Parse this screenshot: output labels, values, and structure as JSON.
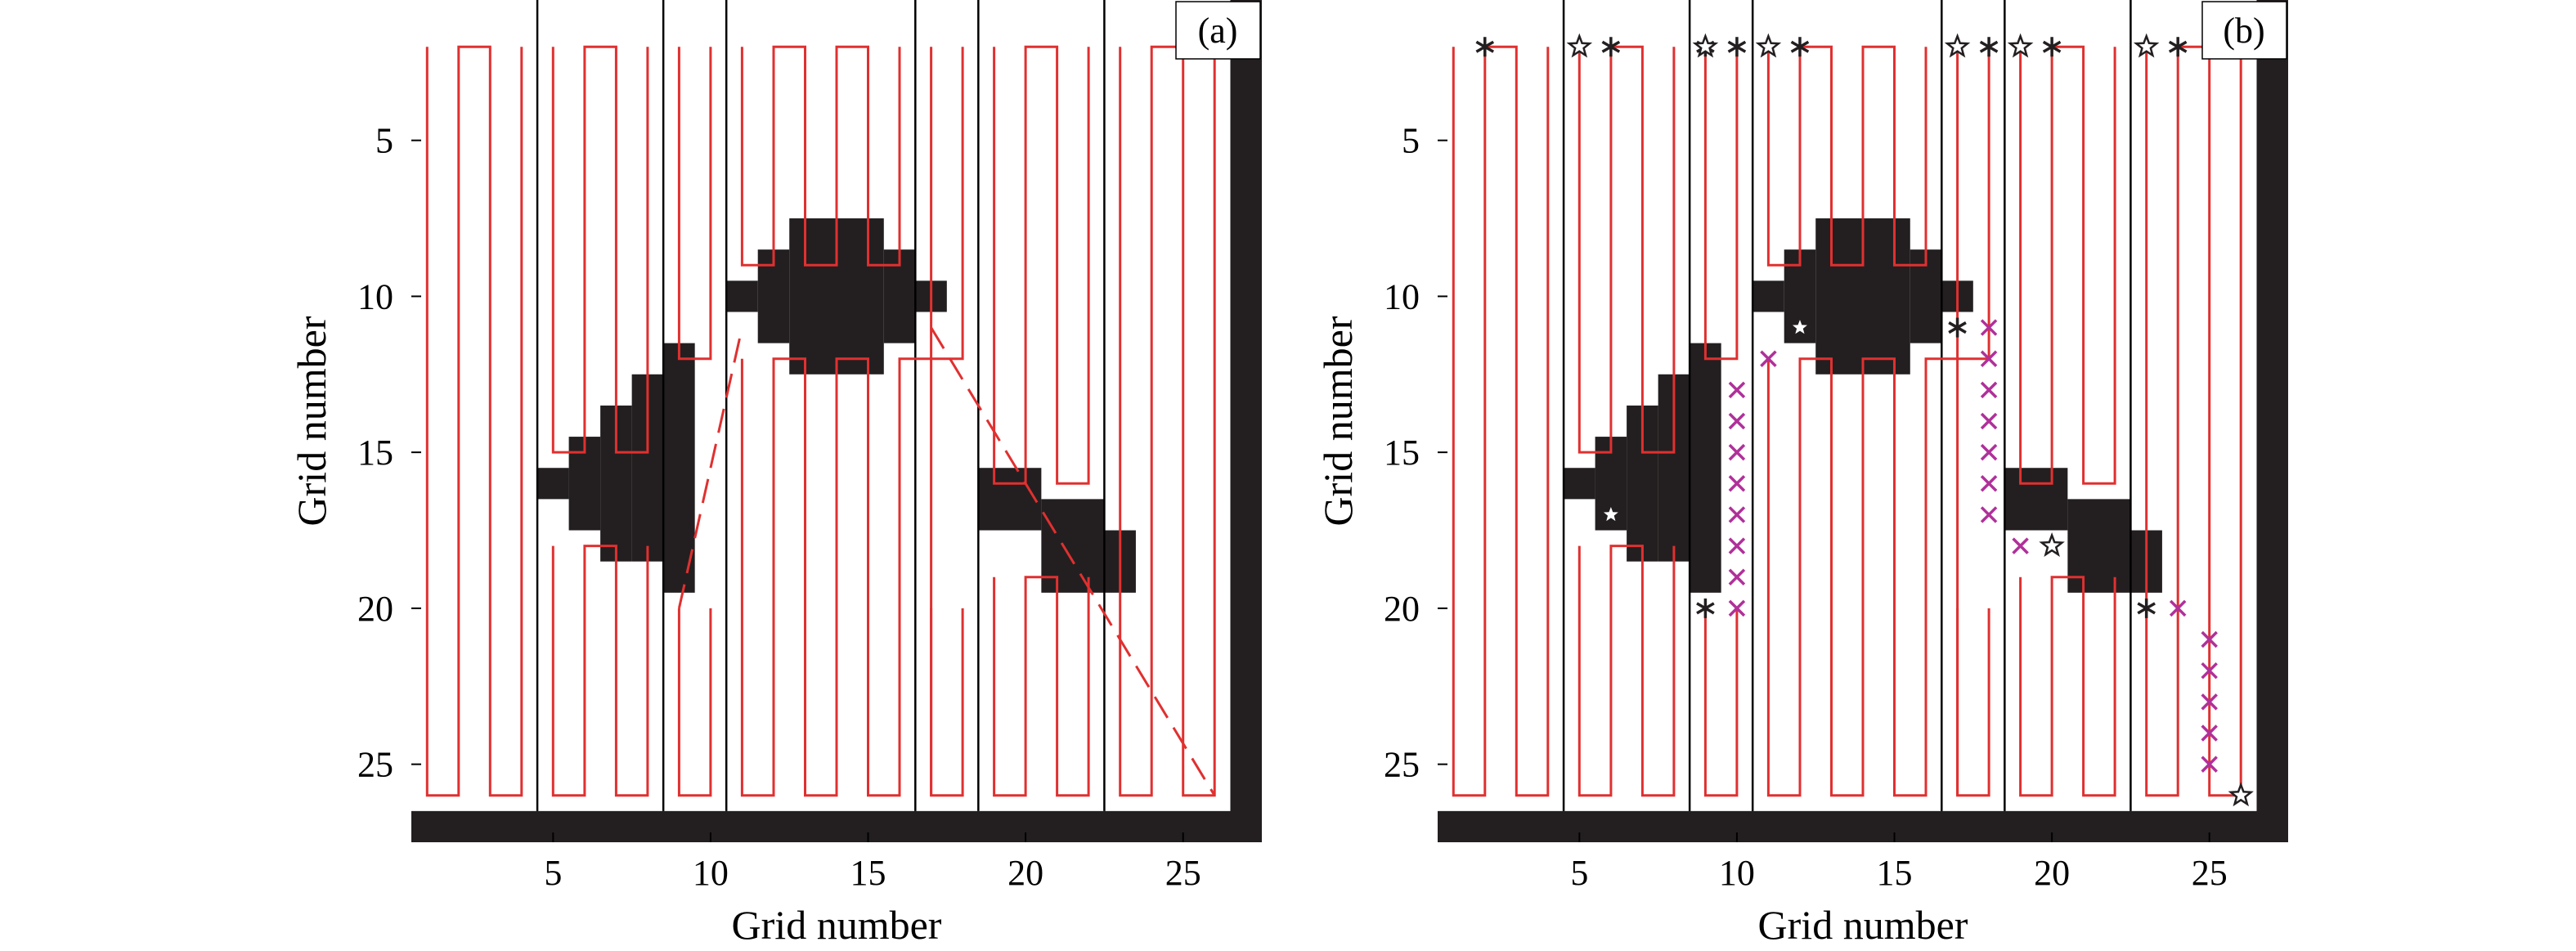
{
  "figure": {
    "panels_count": 2
  },
  "chart_data": [
    {
      "type": "grid-coverage-path",
      "panel_label": "(a)",
      "xlabel": "Grid number",
      "ylabel": "Grid number",
      "xlim": [
        0.5,
        27.5
      ],
      "ylim": [
        27.5,
        0.5
      ],
      "y_axis_inverted": true,
      "xticks": [
        5,
        10,
        15,
        20,
        25
      ],
      "yticks": [
        5,
        10,
        15,
        20,
        25
      ],
      "grid": false,
      "colors": {
        "path": "#e03030",
        "obstacle": "#231f20",
        "divider": "#000000"
      },
      "free_region": {
        "x": [
          1,
          26
        ],
        "y": [
          1,
          26
        ]
      },
      "obstacles": [
        {
          "x": [
            5,
            5
          ],
          "y": [
            16,
            16
          ]
        },
        {
          "x": [
            6,
            6
          ],
          "y": [
            15,
            17
          ]
        },
        {
          "x": [
            7,
            7
          ],
          "y": [
            14,
            18
          ]
        },
        {
          "x": [
            8,
            8
          ],
          "y": [
            13,
            18
          ]
        },
        {
          "x": [
            9,
            9
          ],
          "y": [
            12,
            19
          ]
        },
        {
          "x": [
            11,
            11
          ],
          "y": [
            10,
            10
          ]
        },
        {
          "x": [
            12,
            12
          ],
          "y": [
            9,
            11
          ]
        },
        {
          "x": [
            13,
            15
          ],
          "y": [
            8,
            12
          ]
        },
        {
          "x": [
            16,
            16
          ],
          "y": [
            9,
            11
          ]
        },
        {
          "x": [
            17,
            17
          ],
          "y": [
            10,
            10
          ]
        },
        {
          "x": [
            19,
            20
          ],
          "y": [
            16,
            17
          ]
        },
        {
          "x": [
            21,
            22
          ],
          "y": [
            17,
            19
          ]
        },
        {
          "x": [
            23,
            23
          ],
          "y": [
            18,
            19
          ]
        }
      ],
      "cell_dividers_x": [
        5,
        9,
        11,
        17,
        19,
        23
      ],
      "sweep_columns": [
        {
          "x": [
            1,
            4
          ],
          "y": [
            2,
            26
          ]
        },
        {
          "x": [
            5,
            8
          ],
          "y": [
            2,
            15
          ]
        },
        {
          "x": [
            9,
            10
          ],
          "y": [
            2,
            12
          ]
        },
        {
          "x": [
            11,
            16
          ],
          "y": [
            2,
            9
          ]
        },
        {
          "x": [
            17,
            18
          ],
          "y": [
            2,
            12
          ]
        },
        {
          "x": [
            19,
            22
          ],
          "y": [
            2,
            16
          ]
        },
        {
          "x": [
            23,
            26
          ],
          "y": [
            2,
            26
          ]
        },
        {
          "x": [
            5,
            8
          ],
          "y": [
            18,
            26
          ]
        },
        {
          "x": [
            11,
            17
          ],
          "y": [
            12,
            26
          ]
        },
        {
          "x": [
            19,
            22
          ],
          "y": [
            19,
            26
          ]
        },
        {
          "x": [
            9,
            10
          ],
          "y": [
            20,
            26
          ]
        },
        {
          "x": [
            17,
            18
          ],
          "y": [
            20,
            26
          ]
        }
      ],
      "transitions": [
        {
          "from": [
            9,
            20
          ],
          "to": [
            11,
            11
          ]
        },
        {
          "from": [
            17,
            11
          ],
          "to": [
            26,
            26
          ]
        }
      ]
    },
    {
      "type": "grid-coverage-path",
      "panel_label": "(b)",
      "xlabel": "Grid number",
      "ylabel": "Grid number",
      "xlim": [
        0.5,
        27.5
      ],
      "ylim": [
        27.5,
        0.5
      ],
      "y_axis_inverted": true,
      "xticks": [
        5,
        10,
        15,
        20,
        25
      ],
      "yticks": [
        5,
        10,
        15,
        20,
        25
      ],
      "grid": false,
      "colors": {
        "path": "#e03030",
        "obstacle": "#231f20",
        "divider": "#000000",
        "cross_marker": "#b0309a",
        "star_marker": "#231f20",
        "asterisk_marker": "#231f20"
      },
      "free_region": {
        "x": [
          1,
          26
        ],
        "y": [
          1,
          26
        ]
      },
      "obstacles": [
        {
          "x": [
            5,
            5
          ],
          "y": [
            16,
            16
          ]
        },
        {
          "x": [
            6,
            6
          ],
          "y": [
            15,
            17
          ]
        },
        {
          "x": [
            7,
            7
          ],
          "y": [
            14,
            18
          ]
        },
        {
          "x": [
            8,
            8
          ],
          "y": [
            13,
            18
          ]
        },
        {
          "x": [
            9,
            9
          ],
          "y": [
            12,
            19
          ]
        },
        {
          "x": [
            11,
            11
          ],
          "y": [
            10,
            10
          ]
        },
        {
          "x": [
            12,
            12
          ],
          "y": [
            9,
            11
          ]
        },
        {
          "x": [
            13,
            15
          ],
          "y": [
            8,
            12
          ]
        },
        {
          "x": [
            16,
            16
          ],
          "y": [
            9,
            11
          ]
        },
        {
          "x": [
            17,
            17
          ],
          "y": [
            10,
            10
          ]
        },
        {
          "x": [
            19,
            20
          ],
          "y": [
            16,
            17
          ]
        },
        {
          "x": [
            21,
            22
          ],
          "y": [
            17,
            19
          ]
        },
        {
          "x": [
            23,
            23
          ],
          "y": [
            18,
            19
          ]
        }
      ],
      "cell_dividers_x": [
        5,
        9,
        11,
        17,
        19,
        23
      ],
      "sweep_columns": [
        {
          "x": [
            1,
            4
          ],
          "y": [
            2,
            26
          ]
        },
        {
          "x": [
            5,
            8
          ],
          "y": [
            2,
            15
          ]
        },
        {
          "x": [
            5,
            8
          ],
          "y": [
            18,
            26
          ]
        },
        {
          "x": [
            11,
            16
          ],
          "y": [
            2,
            9
          ]
        },
        {
          "x": [
            11,
            17
          ],
          "y": [
            12,
            26
          ]
        },
        {
          "x": [
            19,
            22
          ],
          "y": [
            2,
            16
          ]
        },
        {
          "x": [
            19,
            22
          ],
          "y": [
            19,
            26
          ]
        },
        {
          "x": [
            23,
            26
          ],
          "y": [
            2,
            26
          ]
        },
        {
          "x": [
            9,
            10
          ],
          "y": [
            2,
            12
          ]
        },
        {
          "x": [
            9,
            10
          ],
          "y": [
            20,
            26
          ]
        },
        {
          "x": [
            17,
            18
          ],
          "y": [
            2,
            12
          ]
        },
        {
          "x": [
            17,
            18
          ],
          "y": [
            20,
            26
          ]
        }
      ],
      "asterisk_points": [
        [
          2,
          2
        ],
        [
          6,
          2
        ],
        [
          9,
          2
        ],
        [
          10,
          2
        ],
        [
          12,
          2
        ],
        [
          18,
          2
        ],
        [
          20,
          2
        ],
        [
          24,
          2
        ],
        [
          17,
          11
        ],
        [
          9,
          20
        ],
        [
          23,
          20
        ]
      ],
      "star_points": [
        [
          5,
          2
        ],
        [
          9,
          2
        ],
        [
          11,
          2
        ],
        [
          17,
          2
        ],
        [
          19,
          2
        ],
        [
          23,
          2
        ],
        [
          12,
          11
        ],
        [
          6,
          17
        ],
        [
          20,
          18
        ],
        [
          26,
          26
        ]
      ],
      "cross_points": [
        [
          11,
          12
        ],
        [
          10,
          13
        ],
        [
          10,
          14
        ],
        [
          10,
          15
        ],
        [
          10,
          16
        ],
        [
          10,
          17
        ],
        [
          10,
          18
        ],
        [
          10,
          19
        ],
        [
          10,
          20
        ],
        [
          18,
          11
        ],
        [
          18,
          12
        ],
        [
          18,
          13
        ],
        [
          18,
          14
        ],
        [
          18,
          15
        ],
        [
          18,
          16
        ],
        [
          18,
          17
        ],
        [
          19,
          18
        ],
        [
          24,
          20
        ],
        [
          25,
          21
        ],
        [
          25,
          22
        ],
        [
          25,
          23
        ],
        [
          25,
          24
        ],
        [
          25,
          25
        ]
      ]
    }
  ]
}
